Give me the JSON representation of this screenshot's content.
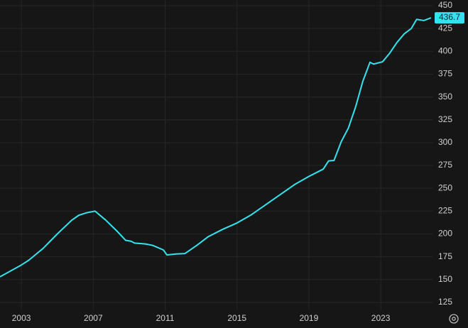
{
  "chart_data": {
    "type": "line",
    "x": [
      2001.81,
      2003.0,
      2003.4,
      2004.2,
      2005.0,
      2005.8,
      2006.2,
      2006.6,
      2007.1,
      2007.7,
      2008.3,
      2008.8,
      2009.1,
      2009.3,
      2009.9,
      2010.3,
      2010.9,
      2011.1,
      2011.6,
      2012.1,
      2012.8,
      2013.4,
      2014.2,
      2015.0,
      2015.8,
      2016.6,
      2017.4,
      2018.2,
      2019.0,
      2019.8,
      2020.1,
      2020.4,
      2020.8,
      2021.2,
      2021.6,
      2022.0,
      2022.4,
      2022.6,
      2023.1,
      2023.5,
      2023.9,
      2024.3,
      2024.7,
      2025.0,
      2025.4,
      2025.8
    ],
    "series": [
      {
        "color": "#33e4f0",
        "values": [
          153,
          166,
          171,
          184,
          200,
          215,
          220.5,
          223,
          225,
          215,
          203.5,
          193,
          192,
          190,
          189,
          187.5,
          182.5,
          177,
          178,
          178.5,
          188,
          197,
          205,
          212,
          221,
          232,
          243,
          254,
          263,
          271,
          280,
          280.5,
          301,
          316,
          339,
          367,
          388,
          386,
          388.5,
          398,
          409.6,
          419,
          425,
          435,
          433.7,
          436.7
        ]
      }
    ],
    "xlim": [
      2001.81,
      2025.92
    ],
    "xticks": [
      2003,
      2007,
      2011,
      2015,
      2019,
      2023
    ],
    "ylim": [
      116.4,
      456.2
    ],
    "yticks": [
      125,
      150,
      175,
      200,
      225,
      250,
      275,
      300,
      325,
      350,
      375,
      400,
      425,
      450
    ],
    "grid": true
  }
}
